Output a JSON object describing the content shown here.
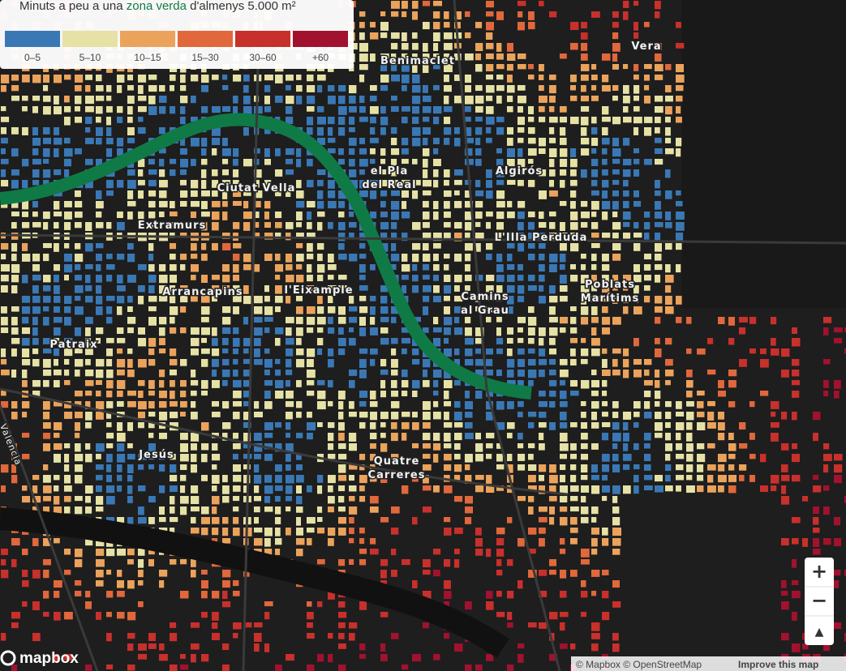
{
  "legend": {
    "title_before": "Minuts a peu a una ",
    "title_highlight": "zona verda",
    "title_after": " d'almenys 5.000 m²",
    "items": [
      {
        "label": "0–5",
        "color": "#3a78b5"
      },
      {
        "label": "5–10",
        "color": "#e6e2a6"
      },
      {
        "label": "10–15",
        "color": "#eba35c"
      },
      {
        "label": "15–30",
        "color": "#e0683c"
      },
      {
        "label": "30–60",
        "color": "#c8302c"
      },
      {
        "label": "+60",
        "color": "#a0122e"
      }
    ]
  },
  "places": {
    "benimaclet": "Benimaclet",
    "vera": "Vera",
    "ciutat_vella": "Ciutat Vella",
    "pla_del_real": [
      "el Pla",
      "del Real"
    ],
    "algiros": "Algirós",
    "extramurs": "Extramurs",
    "illa_perduda": "L'Illa Perduda",
    "eixample": "l'Eixample",
    "arrancapins": "Arrancapins",
    "camins_al_grau": [
      "Camins",
      "al Grau"
    ],
    "poblats_maritims": [
      "Poblats",
      "Marítims"
    ],
    "patraix": "Patraix",
    "jesus": "Jesús",
    "quatre_carreres": [
      "Quatre",
      "Carreres"
    ],
    "valencia": "Valencia"
  },
  "controls": {
    "zoom_in": "+",
    "zoom_out": "−",
    "compass": "▲"
  },
  "attribution": {
    "logo": "mapbox",
    "text": "© Mapbox © OpenStreetMap",
    "link": "Improve this map"
  }
}
